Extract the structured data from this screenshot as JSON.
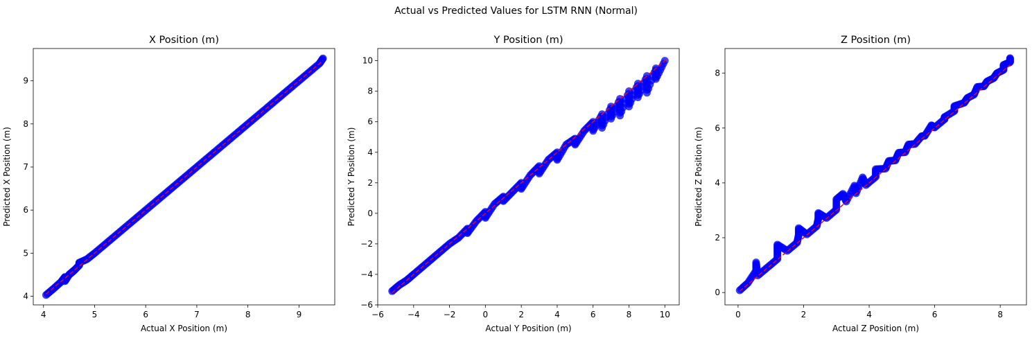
{
  "figure_title": "Actual vs Predicted Values for LSTM RNN (Normal)",
  "point_color": "#0000ff",
  "line_color": "#ff0000",
  "chart_data": [
    {
      "type": "scatter",
      "title": "X Position (m)",
      "xlabel": "Actual X Position (m)",
      "ylabel": "Predicted X Position (m)",
      "xlim": [
        3.8,
        9.7
      ],
      "ylim": [
        3.8,
        9.75
      ],
      "xticks": [
        4,
        5,
        6,
        7,
        8,
        9
      ],
      "yticks": [
        4,
        5,
        6,
        7,
        8,
        9
      ],
      "grid": false,
      "reference_line": [
        [
          4.05,
          4.05
        ],
        [
          9.47,
          9.47
        ]
      ],
      "series": [
        {
          "x": [
            4.05,
            4.2,
            4.35,
            4.42,
            4.5,
            4.6,
            4.7,
            4.85,
            5.0,
            5.2,
            5.4,
            5.6,
            5.8,
            6.0,
            6.2,
            6.4,
            6.6,
            6.8,
            7.0,
            7.2,
            7.4,
            7.6,
            7.8,
            8.0,
            8.2,
            8.4,
            8.6,
            8.8,
            9.0,
            9.2,
            9.4,
            9.47,
            4.42,
            4.55,
            4.7
          ],
          "y": [
            4.03,
            4.18,
            4.34,
            4.45,
            4.5,
            4.6,
            4.72,
            4.86,
            5.0,
            5.2,
            5.4,
            5.6,
            5.8,
            6.0,
            6.2,
            6.4,
            6.6,
            6.8,
            7.0,
            7.2,
            7.4,
            7.6,
            7.8,
            8.0,
            8.2,
            8.4,
            8.6,
            8.8,
            9.0,
            9.2,
            9.4,
            9.52,
            4.35,
            4.55,
            4.78
          ]
        }
      ]
    },
    {
      "type": "scatter",
      "title": "Y Position (m)",
      "xlabel": "Actual Y Position (m)",
      "ylabel": "Predicted Y Position (m)",
      "xlim": [
        -6.0,
        10.8
      ],
      "ylim": [
        -6.0,
        10.8
      ],
      "xticks": [
        -6,
        -4,
        -2,
        0,
        2,
        4,
        6,
        8,
        10
      ],
      "yticks": [
        -6,
        -4,
        -2,
        0,
        2,
        4,
        6,
        8,
        10
      ],
      "grid": false,
      "reference_line": [
        [
          -5.2,
          -5.2
        ],
        [
          10.1,
          10.1
        ]
      ],
      "series": [
        {
          "x": [
            -5.2,
            -4.8,
            -4.4,
            -4.0,
            -3.5,
            -3.0,
            -2.5,
            -2.0,
            -1.5,
            -1.0,
            -0.5,
            0.0,
            0.5,
            1.0,
            1.5,
            2.0,
            2.5,
            3.0,
            3.5,
            4.0,
            4.5,
            5.0,
            5.5,
            6.0,
            6.5,
            7.0,
            7.5,
            8.0,
            8.5,
            9.0,
            9.5,
            10.0,
            -1.0,
            0.0,
            1.0,
            2.0,
            3.0,
            4.0,
            5.0,
            6.0,
            7.0,
            8.0,
            9.0,
            6.5,
            7.5,
            8.5,
            9.5
          ],
          "y": [
            -5.1,
            -4.7,
            -4.4,
            -4.0,
            -3.5,
            -3.0,
            -2.5,
            -2.0,
            -1.6,
            -1.0,
            -0.5,
            0.1,
            0.6,
            1.1,
            1.4,
            2.0,
            2.5,
            3.1,
            3.5,
            4.0,
            4.5,
            4.9,
            5.4,
            6.0,
            6.5,
            7.0,
            7.5,
            8.0,
            8.5,
            9.0,
            9.5,
            10.0,
            -1.3,
            -0.3,
            0.8,
            1.6,
            2.6,
            3.5,
            4.5,
            5.4,
            6.2,
            7.0,
            7.9,
            5.6,
            6.4,
            7.6,
            8.8
          ]
        }
      ]
    },
    {
      "type": "scatter",
      "title": "Z Position (m)",
      "xlabel": "Actual Z Position (m)",
      "ylabel": "Predicted Z Position (m)",
      "xlim": [
        -0.4,
        8.8
      ],
      "ylim": [
        -0.45,
        8.9
      ],
      "xticks": [
        0,
        2,
        4,
        6,
        8
      ],
      "yticks": [
        0,
        2,
        4,
        6,
        8
      ],
      "grid": false,
      "reference_line": [
        [
          0.05,
          0.05
        ],
        [
          8.3,
          8.3
        ]
      ],
      "series": [
        {
          "x": [
            0.05,
            0.3,
            0.6,
            0.9,
            1.2,
            1.5,
            1.8,
            2.1,
            2.4,
            2.7,
            3.0,
            3.3,
            3.6,
            3.9,
            4.2,
            4.5,
            4.8,
            5.1,
            5.4,
            5.7,
            6.0,
            6.3,
            6.6,
            6.9,
            7.2,
            7.5,
            7.8,
            8.1,
            8.3,
            0.55,
            0.55,
            1.2,
            1.2,
            1.85,
            1.85,
            2.45,
            2.45,
            3.0,
            3.2,
            3.55,
            3.8,
            4.2,
            4.6,
            4.9,
            5.2,
            5.6,
            5.9,
            6.3,
            6.6,
            7.0,
            7.3,
            7.6,
            7.9,
            8.1,
            8.3
          ],
          "y": [
            0.08,
            0.35,
            0.62,
            0.92,
            1.22,
            1.52,
            1.82,
            2.12,
            2.42,
            2.72,
            3.02,
            3.32,
            3.62,
            3.92,
            4.22,
            4.52,
            4.82,
            5.12,
            5.42,
            5.72,
            6.02,
            6.32,
            6.62,
            6.92,
            7.22,
            7.52,
            7.82,
            8.12,
            8.4,
            0.8,
            1.1,
            1.5,
            1.75,
            2.1,
            2.35,
            2.7,
            2.9,
            3.4,
            3.6,
            3.9,
            4.2,
            4.5,
            4.8,
            5.1,
            5.4,
            5.7,
            6.1,
            6.4,
            6.8,
            7.1,
            7.5,
            7.7,
            8.0,
            8.3,
            8.55
          ]
        }
      ]
    }
  ]
}
